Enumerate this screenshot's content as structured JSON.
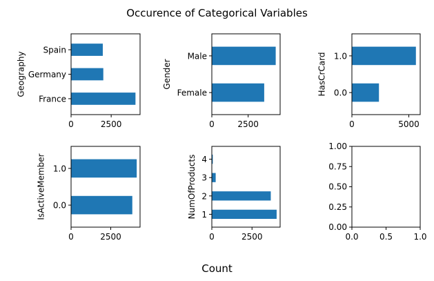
{
  "figure": {
    "suptitle": "Occurence of Categorical Variables",
    "xlabel": "Count",
    "bar_color": "#1f77b4"
  },
  "chart_data": [
    {
      "type": "bar",
      "orientation": "horizontal",
      "ylabel": "Geography",
      "categories": [
        "France",
        "Germany",
        "Spain"
      ],
      "values": [
        4014,
        2009,
        1977
      ],
      "xlim": [
        0,
        4300
      ],
      "xticks": [
        0,
        2500
      ]
    },
    {
      "type": "bar",
      "orientation": "horizontal",
      "ylabel": "Gender",
      "categories": [
        "Female",
        "Male"
      ],
      "values": [
        3604,
        4396
      ],
      "xlim": [
        0,
        4700
      ],
      "xticks": [
        0,
        2500
      ]
    },
    {
      "type": "bar",
      "orientation": "horizontal",
      "ylabel": "HasCrCard",
      "categories": [
        "0.0",
        "1.0"
      ],
      "values": [
        2377,
        5623
      ],
      "xlim": [
        0,
        6000
      ],
      "xticks": [
        0,
        5000
      ]
    },
    {
      "type": "bar",
      "orientation": "horizontal",
      "ylabel": "IsActiveMember",
      "categories": [
        "0.0",
        "1.0"
      ],
      "values": [
        3861,
        4139
      ],
      "xlim": [
        0,
        4350
      ],
      "xticks": [
        0,
        2500
      ]
    },
    {
      "type": "bar",
      "orientation": "horizontal",
      "ylabel": "NumOfProducts",
      "categories": [
        "1",
        "2",
        "3",
        "4"
      ],
      "values": [
        4032,
        3668,
        240,
        60
      ],
      "xlim": [
        0,
        4250
      ],
      "xticks": [
        0,
        2500
      ]
    },
    {
      "type": "empty",
      "categories": [],
      "values": [],
      "xlim": [
        0,
        1
      ],
      "ylim": [
        0,
        1
      ],
      "xticks": [
        "0.0",
        "0.5",
        "1.0"
      ],
      "yticks": [
        "0.00",
        "0.25",
        "0.50",
        "0.75",
        "1.00"
      ]
    }
  ]
}
